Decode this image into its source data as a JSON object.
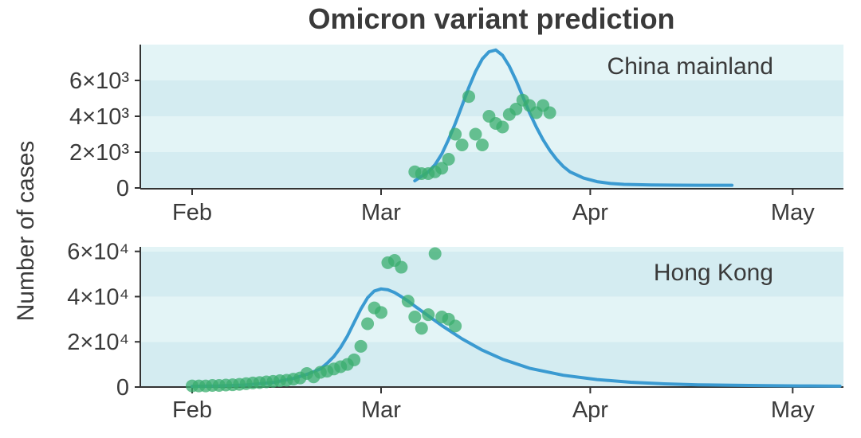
{
  "chart_data": [
    {
      "type": "line",
      "panel_label": "China mainland",
      "title": "Omicron variant prediction",
      "ylabel": "Number of cases",
      "x_ticks": [
        "Feb",
        "Mar",
        "Apr",
        "May"
      ],
      "x_tick_days": [
        0,
        28,
        59,
        89
      ],
      "ylim": [
        0,
        8000
      ],
      "y_ticks": [
        0,
        2000,
        4000,
        6000
      ],
      "y_tick_labels": [
        "0",
        "2×10³",
        "4×10³",
        "6×10³"
      ],
      "series": [
        {
          "kind": "line",
          "color": "#3a9ad1",
          "x": [
            33,
            34,
            35,
            36,
            37,
            38,
            39,
            40,
            41,
            42,
            43,
            44,
            45,
            46,
            47,
            48,
            49,
            50,
            51,
            52,
            53,
            54,
            55,
            56,
            58,
            60,
            62,
            64,
            66,
            68,
            70,
            72,
            75,
            80
          ],
          "y": [
            400,
            650,
            900,
            1300,
            1900,
            2700,
            3600,
            4600,
            5600,
            6500,
            7200,
            7600,
            7700,
            7400,
            6800,
            6000,
            5100,
            4200,
            3400,
            2700,
            2100,
            1600,
            1200,
            900,
            550,
            350,
            250,
            200,
            180,
            170,
            160,
            155,
            150,
            150
          ]
        },
        {
          "kind": "scatter",
          "color": "#3aad6e",
          "x": [
            33,
            34,
            35,
            36,
            37,
            38,
            39,
            40,
            41,
            42,
            43,
            44,
            45,
            46,
            47,
            48,
            49,
            50,
            51,
            52,
            53
          ],
          "y": [
            900,
            800,
            800,
            900,
            1100,
            1600,
            3000,
            2400,
            5100,
            3000,
            2400,
            4000,
            3600,
            3400,
            4100,
            4400,
            4900,
            4600,
            4200,
            4600,
            4200
          ]
        }
      ]
    },
    {
      "type": "line",
      "panel_label": "Hong Kong",
      "x_ticks": [
        "Feb",
        "Mar",
        "Apr",
        "May"
      ],
      "x_tick_days": [
        0,
        28,
        59,
        89
      ],
      "ylim": [
        0,
        62000
      ],
      "y_ticks": [
        0,
        20000,
        40000,
        60000
      ],
      "y_tick_labels": [
        "0",
        "2×10⁴",
        "4×10⁴",
        "6×10⁴"
      ],
      "series": [
        {
          "kind": "line",
          "color": "#3a9ad1",
          "x": [
            0,
            4,
            8,
            12,
            15,
            17,
            19,
            20,
            21,
            22,
            23,
            24,
            25,
            26,
            27,
            28,
            29,
            30,
            31,
            32,
            33,
            35,
            37,
            40,
            43,
            46,
            50,
            55,
            60,
            65,
            70,
            75,
            80,
            85,
            90,
            96
          ],
          "y": [
            300,
            500,
            900,
            2000,
            3800,
            5600,
            8000,
            10500,
            13500,
            17500,
            22500,
            28500,
            34500,
            39500,
            42500,
            43400,
            43000,
            41800,
            40000,
            38000,
            35800,
            31500,
            27200,
            21300,
            16300,
            12300,
            8300,
            5200,
            3300,
            2100,
            1400,
            1000,
            800,
            600,
            500,
            400
          ]
        },
        {
          "kind": "scatter",
          "color": "#3aad6e",
          "x": [
            0,
            1,
            2,
            3,
            4,
            5,
            6,
            7,
            8,
            9,
            10,
            11,
            12,
            13,
            14,
            15,
            16,
            17,
            18,
            19,
            20,
            21,
            22,
            23,
            24,
            25,
            26,
            27,
            28,
            29,
            30,
            31,
            32,
            33,
            34,
            35,
            36,
            37,
            38,
            39
          ],
          "y": [
            500,
            500,
            500,
            700,
            700,
            900,
            1000,
            1200,
            1500,
            1800,
            2000,
            2300,
            2500,
            2800,
            3000,
            3500,
            4000,
            6000,
            4500,
            6500,
            7000,
            8000,
            9000,
            10000,
            12000,
            18000,
            28000,
            35000,
            33000,
            55000,
            56000,
            53000,
            38000,
            31000,
            26000,
            32000,
            59000,
            31000,
            30000,
            27000
          ]
        }
      ]
    }
  ],
  "title": "Omicron variant prediction",
  "ylabel": "Number of cases"
}
